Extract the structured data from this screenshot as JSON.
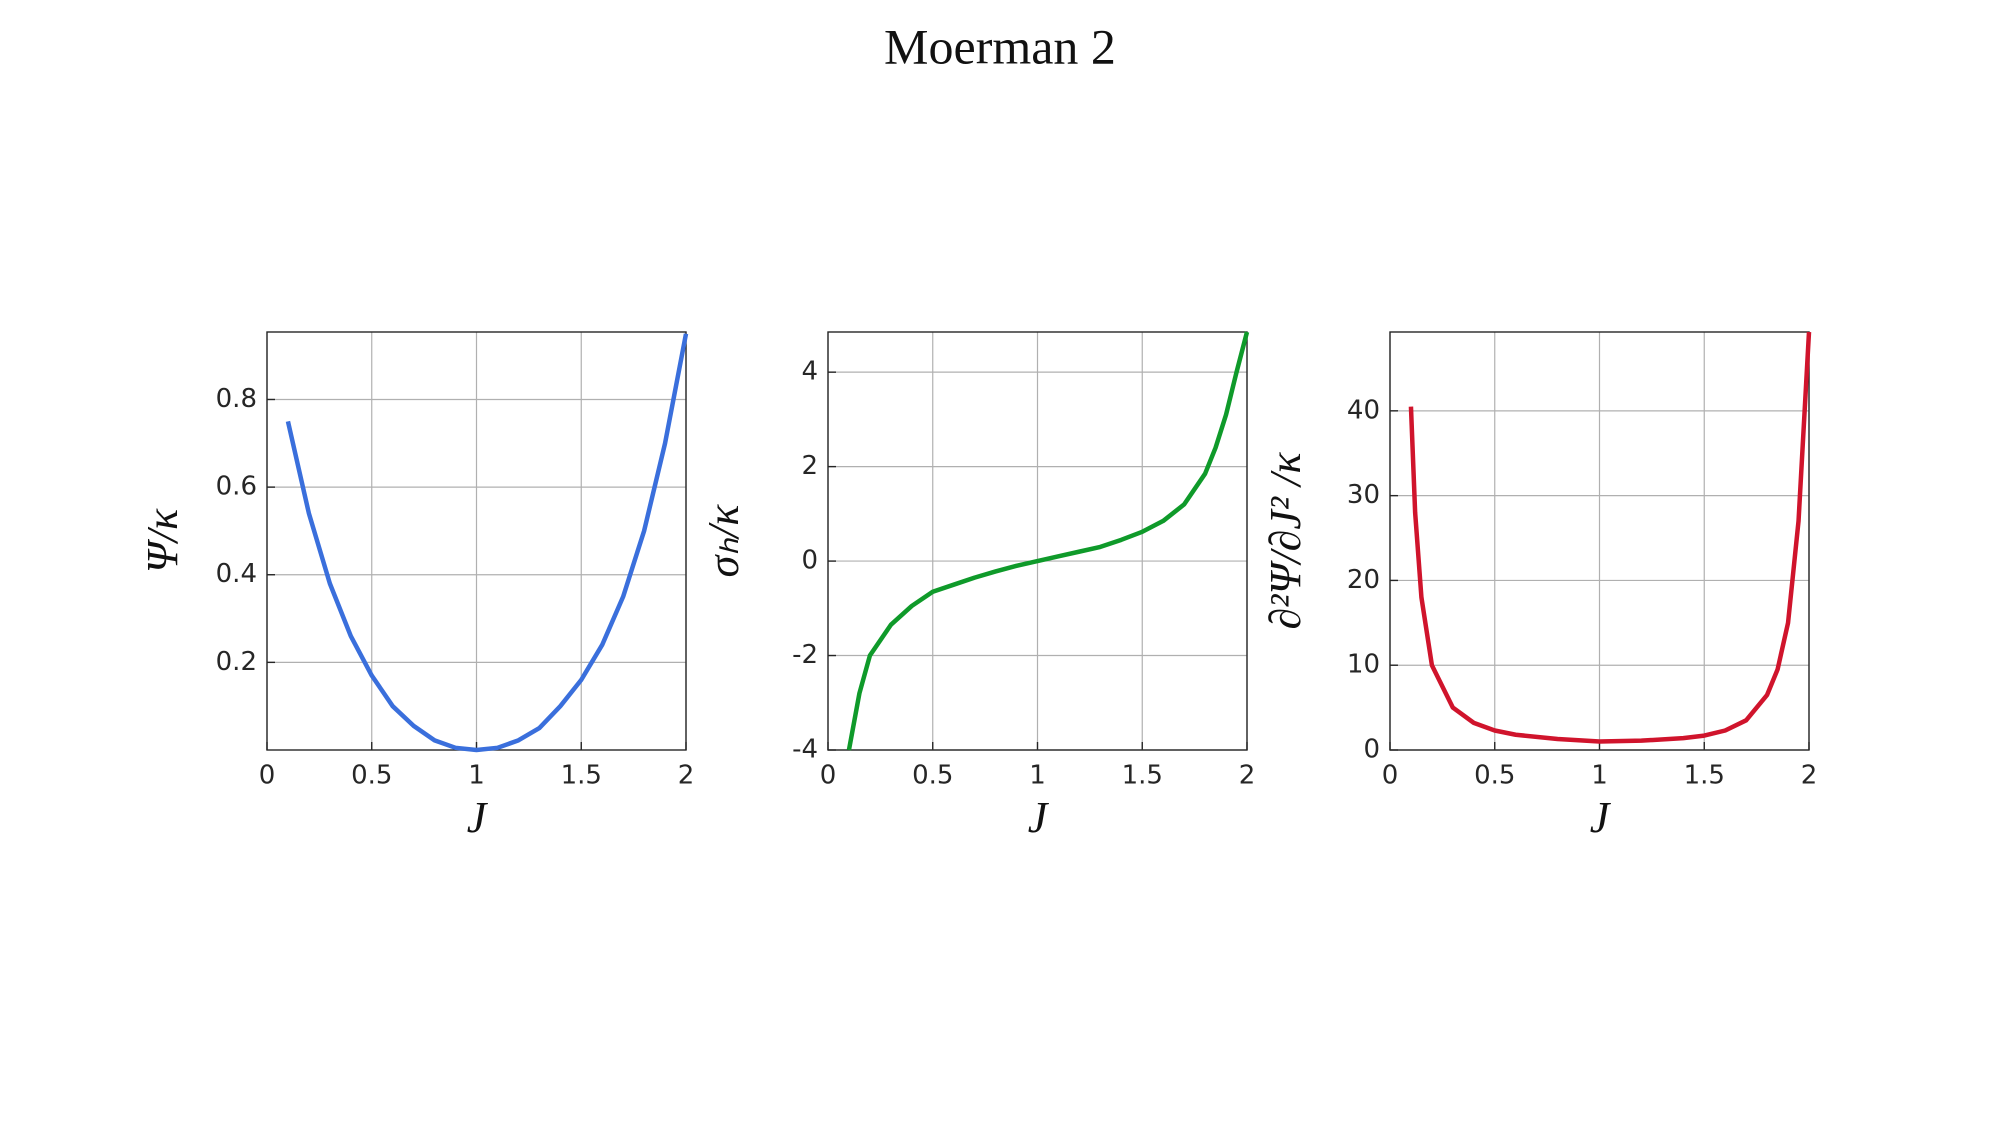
{
  "title": "Moerman 2",
  "chart_data": [
    {
      "type": "line",
      "xlabel": "J",
      "ylabel": "Ψ/κ",
      "color": "#3a6fdc",
      "grid": true,
      "x": [
        0.1,
        0.2,
        0.3,
        0.4,
        0.5,
        0.6,
        0.7,
        0.8,
        0.9,
        1.0,
        1.1,
        1.2,
        1.3,
        1.4,
        1.5,
        1.6,
        1.7,
        1.8,
        1.9,
        2.0
      ],
      "values": [
        0.75,
        0.54,
        0.38,
        0.26,
        0.17,
        0.1,
        0.055,
        0.022,
        0.005,
        0,
        0.005,
        0.022,
        0.05,
        0.1,
        0.16,
        0.24,
        0.35,
        0.5,
        0.7,
        0.95
      ],
      "xlim": [
        0,
        2
      ],
      "xticks": [
        0,
        0.5,
        1,
        1.5,
        2
      ],
      "ylim": [
        0,
        0.954
      ],
      "yticks": [
        0.2,
        0.4,
        0.6,
        0.8
      ]
    },
    {
      "type": "line",
      "xlabel": "J",
      "ylabel": "σₕ/κ",
      "color": "#0f9a2a",
      "grid": true,
      "x": [
        0.1,
        0.15,
        0.2,
        0.3,
        0.4,
        0.5,
        0.6,
        0.7,
        0.8,
        0.9,
        1.0,
        1.1,
        1.2,
        1.3,
        1.4,
        1.5,
        1.6,
        1.7,
        1.8,
        1.85,
        1.9,
        1.95,
        2.0
      ],
      "values": [
        -4.0,
        -2.8,
        -2.0,
        -1.35,
        -0.95,
        -0.65,
        -0.5,
        -0.35,
        -0.22,
        -0.1,
        0,
        0.1,
        0.2,
        0.3,
        0.45,
        0.62,
        0.85,
        1.2,
        1.85,
        2.4,
        3.1,
        4.0,
        4.85
      ],
      "xlim": [
        0,
        2
      ],
      "xticks": [
        0,
        0.5,
        1,
        1.5,
        2
      ],
      "ylim": [
        -4,
        4.85
      ],
      "yticks": [
        -4,
        -2,
        0,
        2,
        4
      ]
    },
    {
      "type": "line",
      "xlabel": "J",
      "ylabel": "∂²Ψ/∂J² /κ",
      "color": "#d0142c",
      "grid": true,
      "x": [
        0.1,
        0.12,
        0.15,
        0.2,
        0.3,
        0.4,
        0.5,
        0.6,
        0.8,
        1.0,
        1.2,
        1.4,
        1.5,
        1.6,
        1.7,
        1.8,
        1.85,
        1.9,
        1.95,
        2.0
      ],
      "values": [
        40.5,
        28,
        18,
        10,
        5,
        3.2,
        2.3,
        1.8,
        1.3,
        1.0,
        1.1,
        1.4,
        1.7,
        2.3,
        3.5,
        6.5,
        9.5,
        15,
        27,
        49.3
      ],
      "xlim": [
        0,
        2
      ],
      "xticks": [
        0,
        0.5,
        1,
        1.5,
        2
      ],
      "ylim": [
        0,
        49.3
      ],
      "yticks": [
        0,
        10,
        20,
        30,
        40
      ]
    }
  ]
}
